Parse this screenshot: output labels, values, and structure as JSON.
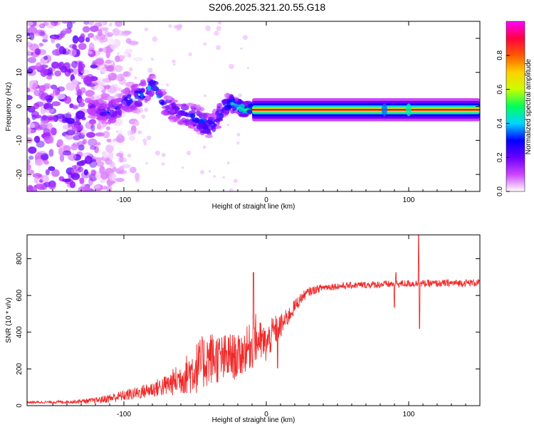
{
  "title": "S206.2025.321.20.55.G18",
  "colors": {
    "snr_line": "#ee2a2a",
    "background": "#ffffff",
    "axis": "#000000",
    "carrier_core": "#e8112d"
  },
  "chart_data": [
    {
      "type": "heatmap",
      "title": "S206.2025.321.20.55.G18",
      "xlabel": "Height of straight line (km)",
      "ylabel": "Frequency (Hz)",
      "xlim": [
        -168,
        150
      ],
      "ylim": [
        -25,
        25
      ],
      "xticks": [
        -100,
        0,
        100
      ],
      "xtick_labels": [
        "-100",
        "0",
        "100"
      ],
      "yticks": [
        -20,
        -10,
        0,
        10,
        20
      ],
      "ytick_labels": [
        "-20",
        "-10",
        "0",
        "10",
        "20"
      ],
      "colorbar": {
        "label": "Normalized spectral amplitude",
        "range": [
          0,
          1
        ],
        "ticks": [
          0,
          0.2,
          0.4,
          0.6,
          0.8
        ],
        "tick_labels": [
          "0.0",
          "0.2",
          "0.4",
          "0.6",
          "0.8"
        ],
        "stops": [
          "#ffffff",
          "#cc44ff",
          "#6a00ff",
          "#0000ff",
          "#00d5ff",
          "#00ff5a",
          "#c8ff00",
          "#ffd000",
          "#ff5a00",
          "#ff0040",
          "#ff00ff"
        ]
      },
      "carrier": {
        "start_km": -10,
        "end_km": 150,
        "frequency_hz": -1
      },
      "noise_region": {
        "start_km": -168,
        "end_km": -120
      },
      "track": {
        "x": [
          -125,
          -110,
          -100,
          -90,
          -80,
          -70,
          -60,
          -50,
          -40,
          -35,
          -30,
          -25,
          -20,
          -15,
          -10,
          -5,
          0,
          5,
          10
        ],
        "y": [
          0,
          -2,
          1,
          3,
          6,
          0,
          -2,
          -3,
          -6,
          -4,
          0,
          1,
          0,
          -1,
          0,
          -1,
          -1,
          -1,
          -1
        ],
        "spread_hz": [
          3,
          3,
          3.5,
          3.5,
          3,
          3,
          3,
          3.5,
          3.5,
          3,
          3,
          2.5,
          2,
          2,
          1.5,
          1.5,
          1.2,
          1,
          1
        ],
        "amplitude": [
          0.2,
          0.3,
          0.3,
          0.35,
          0.4,
          0.3,
          0.3,
          0.35,
          0.35,
          0.3,
          0.35,
          0.4,
          0.5,
          0.55,
          0.6,
          0.6,
          0.65,
          0.7,
          0.75
        ]
      }
    },
    {
      "type": "line",
      "title": "",
      "xlabel": "Height of straight line (km)",
      "ylabel": "SNR (10 * v/v)",
      "xlim": [
        -168,
        150
      ],
      "ylim": [
        0,
        930
      ],
      "xticks": [
        -100,
        0,
        100
      ],
      "xtick_labels": [
        "-100",
        "0",
        "100"
      ],
      "yticks": [
        0,
        200,
        400,
        600,
        800
      ],
      "ytick_labels": [
        "0",
        "200",
        "400",
        "600",
        "800"
      ],
      "series": [
        {
          "name": "SNR",
          "color": "#ee2a2a",
          "envelope": {
            "x": [
              -168,
              -140,
              -120,
              -110,
              -100,
              -90,
              -80,
              -70,
              -60,
              -50,
              -45,
              -40,
              -35,
              -30,
              -25,
              -20,
              -15,
              -10,
              -8,
              -5,
              0,
              5,
              10,
              15,
              20,
              25,
              30,
              40,
              60,
              80,
              100,
              120,
              150
            ],
            "mean": [
              18,
              20,
              28,
              40,
              55,
              70,
              90,
              110,
              150,
              200,
              230,
              260,
              260,
              250,
              270,
              260,
              300,
              330,
              360,
              350,
              330,
              400,
              430,
              480,
              540,
              590,
              620,
              645,
              655,
              660,
              665,
              665,
              670
            ],
            "amplitude": [
              6,
              8,
              15,
              25,
              30,
              35,
              45,
              60,
              90,
              140,
              150,
              150,
              140,
              140,
              130,
              120,
              120,
              130,
              150,
              120,
              100,
              90,
              70,
              50,
              40,
              30,
              25,
              20,
              18,
              20,
              20,
              20,
              20
            ]
          },
          "spikes": [
            {
              "x": -9,
              "value": 725
            },
            {
              "x": -5,
              "value": 330
            },
            {
              "x": 8,
              "value": 205
            },
            {
              "x": 90,
              "value": 535
            },
            {
              "x": 91,
              "value": 725
            },
            {
              "x": 107,
              "value": 935
            },
            {
              "x": 107.7,
              "value": 420
            }
          ]
        }
      ]
    }
  ]
}
